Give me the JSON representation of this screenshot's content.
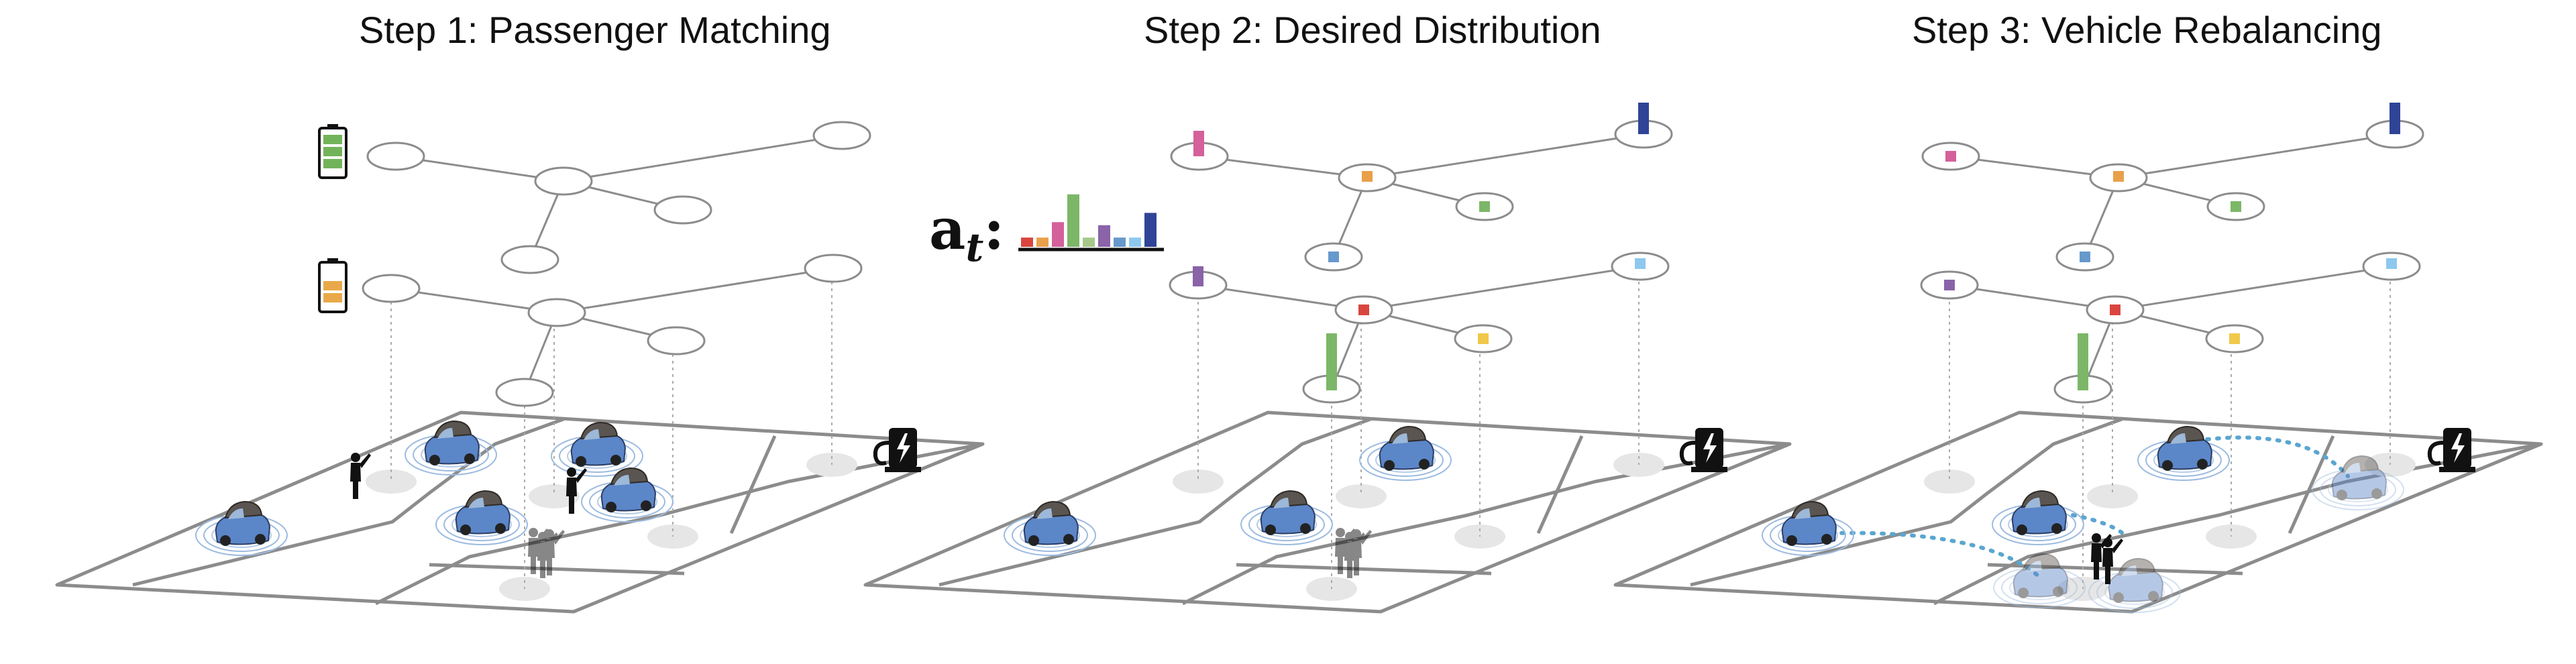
{
  "steps": [
    {
      "title": "Step 1: Passenger Matching"
    },
    {
      "title": "Step 2: Desired Distribution"
    },
    {
      "title": "Step 3: Vehicle Rebalancing"
    }
  ],
  "action": {
    "symbol": "a",
    "subscript": "t",
    "separator": ":"
  },
  "palette": {
    "magenta": "#d4619a",
    "orange": "#e9a04a",
    "green": "#7cb767",
    "blue_mid": "#6699cc",
    "purple": "#8a63a8",
    "red": "#d9463f",
    "yellow": "#f0c94a",
    "navy": "#2f4496",
    "light_blue": "#8ec8ee",
    "road": "#8c8c8c",
    "car_blue": "#5b86c8",
    "car_top": "#5a5550",
    "battery_full": "#72b35a",
    "battery_half": "#e9a94a"
  },
  "action_histogram_colors": [
    "#d9463f",
    "#e9a04a",
    "#d4619a",
    "#7cb767",
    "#a6c98a",
    "#8a63a8",
    "#6699cc",
    "#8ec8ee",
    "#2f4496"
  ],
  "action_histogram_values": [
    0.15,
    0.15,
    0.4,
    0.85,
    0.15,
    0.35,
    0.15,
    0.15,
    0.55
  ],
  "icons": [
    "battery-full-icon",
    "battery-half-icon",
    "charging-station-icon",
    "passenger-icon",
    "car-icon"
  ]
}
